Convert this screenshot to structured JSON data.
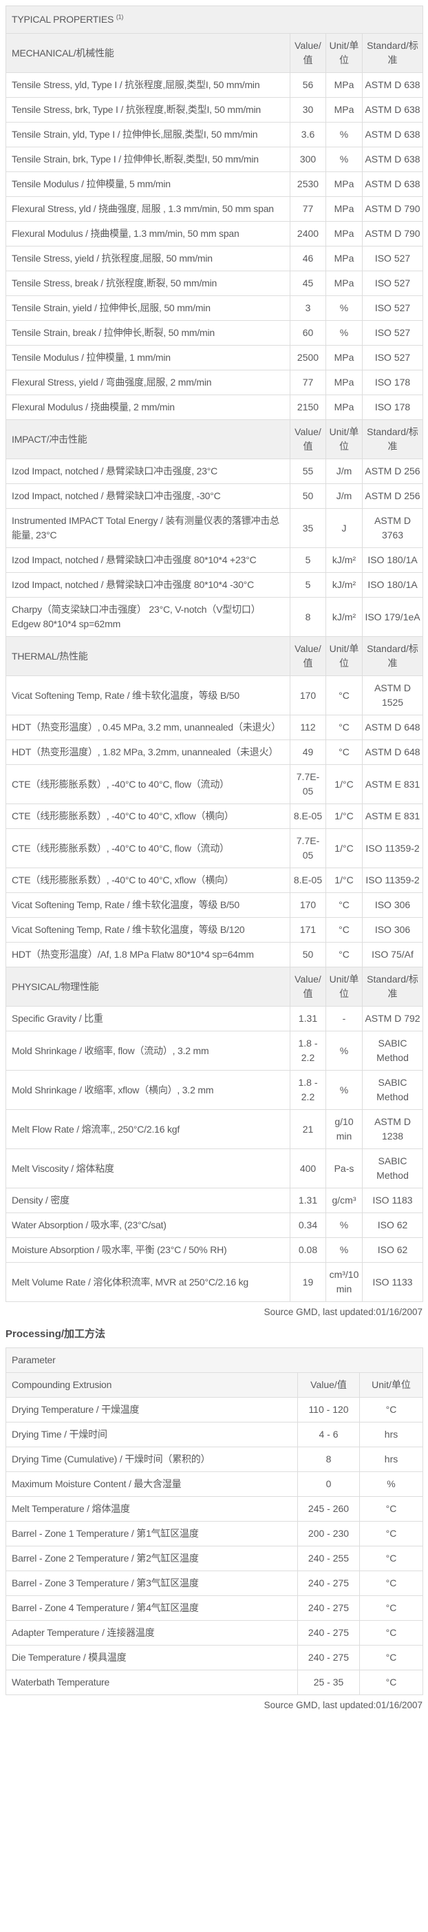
{
  "colors": {
    "header_bg": "#f0f0f0",
    "subheader_bg": "#f5f5f5",
    "text": "#59595b",
    "border": "#dddddd",
    "outer_border": "#b0b0b0"
  },
  "page": {
    "title": "TYPICAL PROPERTIES",
    "title_footnote": "(1)",
    "source_note": "Source GMD, last updated:01/16/2007",
    "processing_heading": "Processing/加工方法"
  },
  "properties_table": {
    "sections": [
      {
        "name": "MECHANICAL/机械性能",
        "col_value": "Value/值",
        "col_unit": "Unit/单位",
        "col_standard": "Standard/标准",
        "rows": [
          {
            "property": "Tensile Stress, yld, Type I / 抗张程度,屈服,类型I, 50 mm/min",
            "value": "56",
            "unit": "MPa",
            "standard": "ASTM D 638"
          },
          {
            "property": "Tensile Stress, brk, Type I / 抗张程度,断裂,类型I, 50 mm/min",
            "value": "30",
            "unit": "MPa",
            "standard": "ASTM D 638"
          },
          {
            "property": "Tensile Strain, yld, Type I / 拉伸伸长,屈服,类型I, 50 mm/min",
            "value": "3.6",
            "unit": "%",
            "standard": "ASTM D 638"
          },
          {
            "property": "Tensile Strain, brk, Type I / 拉伸伸长,断裂,类型I, 50 mm/min",
            "value": "300",
            "unit": "%",
            "standard": "ASTM D 638"
          },
          {
            "property": "Tensile Modulus / 拉伸模量, 5 mm/min",
            "value": "2530",
            "unit": "MPa",
            "standard": "ASTM D 638"
          },
          {
            "property": "Flexural Stress, yld / 挠曲强度, 屈服 , 1.3 mm/min, 50 mm span",
            "value": "77",
            "unit": "MPa",
            "standard": "ASTM D 790"
          },
          {
            "property": "Flexural Modulus / 挠曲模量, 1.3 mm/min, 50 mm span",
            "value": "2400",
            "unit": "MPa",
            "standard": "ASTM D 790"
          },
          {
            "property": "Tensile Stress, yield / 抗张程度,屈服, 50 mm/min",
            "value": "46",
            "unit": "MPa",
            "standard": "ISO 527"
          },
          {
            "property": "Tensile Stress, break / 抗张程度,断裂, 50 mm/min",
            "value": "45",
            "unit": "MPa",
            "standard": "ISO 527"
          },
          {
            "property": "Tensile Strain, yield / 拉伸伸长,屈服, 50 mm/min",
            "value": "3",
            "unit": "%",
            "standard": "ISO 527"
          },
          {
            "property": "Tensile Strain, break / 拉伸伸长,断裂, 50 mm/min",
            "value": "60",
            "unit": "%",
            "standard": "ISO 527"
          },
          {
            "property": "Tensile Modulus / 拉伸模量, 1 mm/min",
            "value": "2500",
            "unit": "MPa",
            "standard": "ISO 527"
          },
          {
            "property": "Flexural Stress, yield / 弯曲强度,屈服, 2 mm/min",
            "value": "77",
            "unit": "MPa",
            "standard": "ISO 178"
          },
          {
            "property": "Flexural Modulus / 挠曲模量, 2 mm/min",
            "value": "2150",
            "unit": "MPa",
            "standard": "ISO 178"
          }
        ]
      },
      {
        "name": "IMPACT/冲击性能",
        "col_value": "Value/值",
        "col_unit": "Unit/单位",
        "col_standard": "Standard/标准",
        "rows": [
          {
            "property": "Izod Impact, notched / 悬臂梁缺口冲击强度, 23°C",
            "value": "55",
            "unit": "J/m",
            "standard": "ASTM D 256"
          },
          {
            "property": "Izod Impact, notched / 悬臂梁缺口冲击强度, -30°C",
            "value": "50",
            "unit": "J/m",
            "standard": "ASTM D 256"
          },
          {
            "property": "Instrumented IMPACT Total Energy / 装有测量仪表的落镖冲击总能量, 23°C",
            "value": "35",
            "unit": "J",
            "standard": "ASTM D 3763"
          },
          {
            "property": "Izod Impact, notched / 悬臂梁缺口冲击强度 80*10*4 +23°C",
            "value": "5",
            "unit": "kJ/m²",
            "standard": "ISO 180/1A"
          },
          {
            "property": "Izod Impact, notched / 悬臂梁缺口冲击强度 80*10*4 -30°C",
            "value": "5",
            "unit": "kJ/m²",
            "standard": "ISO 180/1A"
          },
          {
            "property": "Charpy（简支梁缺口冲击强度） 23°C, V-notch（V型切口） Edgew 80*10*4 sp=62mm",
            "value": "8",
            "unit": "kJ/m²",
            "standard": "ISO 179/1eA"
          }
        ]
      },
      {
        "name": "THERMAL/热性能",
        "col_value": "Value/值",
        "col_unit": "Unit/单位",
        "col_standard": "Standard/标准",
        "rows": [
          {
            "property": "Vicat Softening Temp, Rate / 维卡软化温度，等级 B/50",
            "value": "170",
            "unit": "°C",
            "standard": "ASTM D 1525"
          },
          {
            "property": "HDT（热变形温度）, 0.45 MPa, 3.2 mm, unannealed（未退火）",
            "value": "112",
            "unit": "°C",
            "standard": "ASTM D 648"
          },
          {
            "property": "HDT（热变形温度）, 1.82 MPa, 3.2mm, unannealed（未退火）",
            "value": "49",
            "unit": "°C",
            "standard": "ASTM D 648"
          },
          {
            "property": "CTE（线形膨胀系数）, -40°C to 40°C, flow（流动）",
            "value": "7.7E-05",
            "unit": "1/°C",
            "standard": "ASTM E 831"
          },
          {
            "property": "CTE（线形膨胀系数）, -40°C to 40°C, xflow（横向）",
            "value": "8.E-05",
            "unit": "1/°C",
            "standard": "ASTM E 831"
          },
          {
            "property": "CTE（线形膨胀系数）, -40°C to 40°C, flow（流动）",
            "value": "7.7E-05",
            "unit": "1/°C",
            "standard": "ISO 11359-2"
          },
          {
            "property": "CTE（线形膨胀系数）, -40°C to 40°C, xflow（横向）",
            "value": "8.E-05",
            "unit": "1/°C",
            "standard": "ISO 11359-2"
          },
          {
            "property": "Vicat Softening Temp, Rate / 维卡软化温度，等级 B/50",
            "value": "170",
            "unit": "°C",
            "standard": "ISO 306"
          },
          {
            "property": "Vicat Softening Temp, Rate / 维卡软化温度，等级 B/120",
            "value": "171",
            "unit": "°C",
            "standard": "ISO 306"
          },
          {
            "property": "HDT（热变形温度）/Af, 1.8 MPa Flatw 80*10*4 sp=64mm",
            "value": "50",
            "unit": "°C",
            "standard": "ISO 75/Af"
          }
        ]
      },
      {
        "name": "PHYSICAL/物理性能",
        "col_value": "Value/值",
        "col_unit": "Unit/单位",
        "col_standard": "Standard/标准",
        "rows": [
          {
            "property": "Specific Gravity / 比重",
            "value": "1.31",
            "unit": "-",
            "standard": "ASTM D 792"
          },
          {
            "property": "Mold Shrinkage / 收缩率, flow（流动）, 3.2 mm",
            "value": "1.8 - 2.2",
            "unit": "%",
            "standard": "SABIC Method"
          },
          {
            "property": "Mold Shrinkage / 收缩率, xflow（横向）, 3.2 mm",
            "value": "1.8 - 2.2",
            "unit": "%",
            "standard": "SABIC Method"
          },
          {
            "property": "Melt Flow Rate / 熔流率,, 250°C/2.16 kgf",
            "value": "21",
            "unit": "g/10 min",
            "standard": "ASTM D 1238"
          },
          {
            "property": "Melt Viscosity / 熔体粘度",
            "value": "400",
            "unit": "Pa-s",
            "standard": "SABIC Method"
          },
          {
            "property": "Density / 密度",
            "value": "1.31",
            "unit": "g/cm³",
            "standard": "ISO 1183"
          },
          {
            "property": "Water Absorption / 吸水率, (23°C/sat)",
            "value": "0.34",
            "unit": "%",
            "standard": "ISO 62"
          },
          {
            "property": "Moisture Absorption / 吸水率, 平衡 (23°C / 50% RH)",
            "value": "0.08",
            "unit": "%",
            "standard": "ISO 62"
          },
          {
            "property": "Melt Volume Rate / 溶化体积流率, MVR at 250°C/2.16 kg",
            "value": "19",
            "unit": "cm³/10 min",
            "standard": "ISO 1133"
          }
        ]
      }
    ]
  },
  "processing_table": {
    "param_header": "Parameter",
    "group_header": "Compounding Extrusion",
    "col_value": "Value/值",
    "col_unit": "Unit/单位",
    "rows": [
      {
        "parameter": "Drying Temperature / 干燥温度",
        "value": "110 - 120",
        "unit": "°C"
      },
      {
        "parameter": "Drying Time / 干燥时间",
        "value": "4 - 6",
        "unit": "hrs"
      },
      {
        "parameter": "Drying Time (Cumulative) / 干燥时间（累积的）",
        "value": "8",
        "unit": "hrs"
      },
      {
        "parameter": "Maximum Moisture Content / 最大含湿量",
        "value": "0",
        "unit": "%"
      },
      {
        "parameter": "Melt Temperature / 熔体温度",
        "value": "245 - 260",
        "unit": "°C"
      },
      {
        "parameter": "Barrel - Zone 1 Temperature / 第1气缸区温度",
        "value": "200 - 230",
        "unit": "°C"
      },
      {
        "parameter": "Barrel - Zone 2 Temperature / 第2气缸区温度",
        "value": "240 - 255",
        "unit": "°C"
      },
      {
        "parameter": "Barrel - Zone 3 Temperature / 第3气缸区温度",
        "value": "240 - 275",
        "unit": "°C"
      },
      {
        "parameter": "Barrel - Zone 4 Temperature / 第4气缸区温度",
        "value": "240 - 275",
        "unit": "°C"
      },
      {
        "parameter": "Adapter Temperature / 连接器温度",
        "value": "240 - 275",
        "unit": "°C"
      },
      {
        "parameter": "Die Temperature / 模具温度",
        "value": "240 - 275",
        "unit": "°C"
      },
      {
        "parameter": "Waterbath Temperature",
        "value": "25 - 35",
        "unit": "°C"
      }
    ]
  }
}
